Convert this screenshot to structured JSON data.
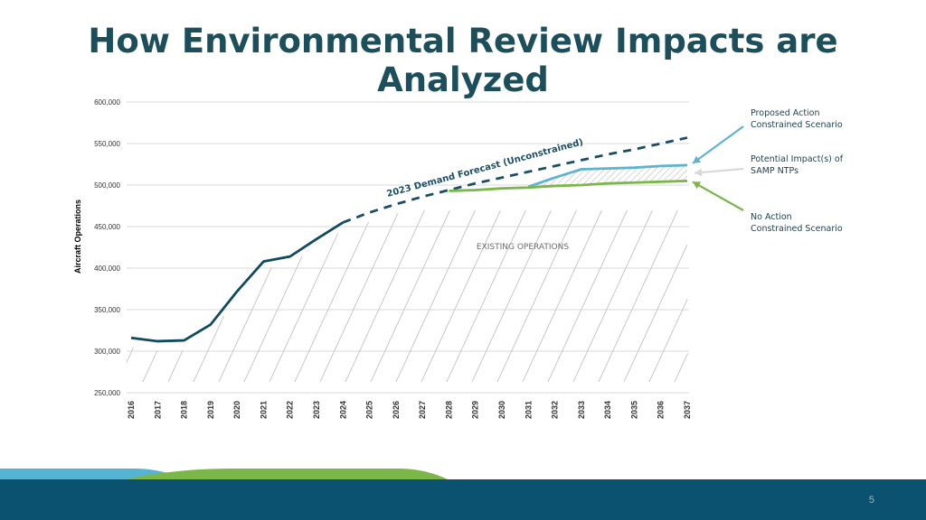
{
  "slide": {
    "title": "How Environmental Review Impacts are Analyzed",
    "page_number": "5"
  },
  "colors": {
    "title": "#1c4f5b",
    "historical": "#0f4a5e",
    "forecast": "#1a4e66",
    "proposed": "#5fb3d0",
    "no_action": "#7ab648",
    "hatch": "#c8c8c8",
    "footer_dark": "#0b5170",
    "footer_light": "#56b3d2",
    "footer_green": "#7ab648"
  },
  "chart_data": {
    "type": "line",
    "ylabel": "Aircraft Operations",
    "ylim": [
      250000,
      600000
    ],
    "yticks": [
      250000,
      300000,
      350000,
      400000,
      450000,
      500000,
      550000,
      600000
    ],
    "ytick_labels": [
      "250,000",
      "300,000",
      "350,000",
      "400,000",
      "450,000",
      "500,000",
      "550,000",
      "600,000"
    ],
    "categories": [
      "2016",
      "2017",
      "2018",
      "2019",
      "2020",
      "2021",
      "2022",
      "2023",
      "2024",
      "2025",
      "2026",
      "2027",
      "2028",
      "2029",
      "2030",
      "2031",
      "2032",
      "2033",
      "2034",
      "2035",
      "2036",
      "2037"
    ],
    "series": [
      {
        "key": "historical",
        "style": "solid",
        "x": [
          "2016",
          "2017",
          "2018",
          "2019",
          "2020",
          "2021",
          "2022",
          "2023",
          "2024"
        ],
        "values": [
          316000,
          312000,
          313000,
          332000,
          372000,
          408000,
          414000,
          435000,
          455000
        ]
      },
      {
        "key": "forecast",
        "name": "2023 Demand Forecast (Unconstrained)",
        "style": "dashed",
        "x": [
          "2024",
          "2025",
          "2026",
          "2027",
          "2028",
          "2029",
          "2030",
          "2031",
          "2032",
          "2033",
          "2034",
          "2035",
          "2036",
          "2037"
        ],
        "values": [
          455000,
          467000,
          477000,
          486000,
          494000,
          502000,
          509000,
          516000,
          523000,
          530000,
          537000,
          543000,
          550000,
          557000
        ]
      },
      {
        "key": "proposed",
        "name": "Proposed Action\nConstrained Scenario",
        "style": "solid",
        "x": [
          "2031",
          "2032",
          "2033",
          "2034",
          "2035",
          "2036",
          "2037"
        ],
        "values": [
          498000,
          509000,
          519000,
          520000,
          521000,
          523000,
          524000
        ]
      },
      {
        "key": "no_action",
        "name": "No Action\nConstrained Scenario",
        "style": "solid",
        "x": [
          "2028",
          "2029",
          "2030",
          "2031",
          "2032",
          "2033",
          "2034",
          "2035",
          "2036",
          "2037"
        ],
        "values": [
          493000,
          494000,
          496000,
          497000,
          499000,
          500000,
          502000,
          503000,
          504000,
          505000
        ]
      }
    ],
    "annotations": {
      "existing_operations": "EXISTING OPERATIONS",
      "forecast_label": "2023 Demand Forecast (Unconstrained)",
      "proposed_label": "Proposed Action\nConstrained Scenario",
      "impact_label": "Potential Impact(s) of\nSAMP NTPs",
      "no_action_label": "No Action\nConstrained Scenario"
    },
    "grid": true,
    "legend": "callouts-right"
  }
}
